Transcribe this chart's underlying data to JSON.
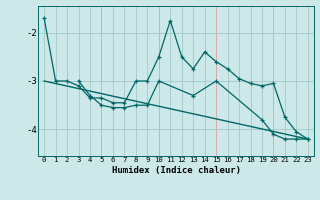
{
  "xlabel": "Humidex (Indice chaleur)",
  "background_color": "#cce8e8",
  "grid_color": "#aacccc",
  "red_grid_color": "#ddaaaa",
  "line_color": "#006666",
  "series1": {
    "x": [
      0,
      1,
      2,
      3,
      4,
      5,
      6,
      7,
      8,
      9,
      10,
      11,
      12,
      13,
      14,
      15,
      16,
      17,
      18,
      19,
      20,
      21,
      22,
      23
    ],
    "y": [
      -1.7,
      -3.0,
      -3.0,
      -3.1,
      -3.35,
      -3.35,
      -3.45,
      -3.45,
      -3.0,
      -3.0,
      -2.5,
      -1.75,
      -2.5,
      -2.75,
      -2.4,
      -2.6,
      -2.75,
      -2.95,
      -3.05,
      -3.1,
      -3.05,
      -3.75,
      -4.05,
      -4.2
    ]
  },
  "series2": {
    "x": [
      3,
      4,
      5,
      6,
      7,
      8,
      9,
      10,
      13,
      15,
      19,
      20,
      21,
      22,
      23
    ],
    "y": [
      -3.0,
      -3.3,
      -3.5,
      -3.55,
      -3.55,
      -3.5,
      -3.5,
      -3.0,
      -3.3,
      -3.0,
      -3.8,
      -4.1,
      -4.2,
      -4.2,
      -4.2
    ]
  },
  "series3": {
    "x": [
      0,
      23
    ],
    "y": [
      -3.0,
      -4.2
    ]
  },
  "ylim": [
    -4.55,
    -1.45
  ],
  "xlim": [
    -0.5,
    23.5
  ],
  "yticks": [
    -4,
    -3,
    -2
  ],
  "xtick_labels": [
    "0",
    "1",
    "2",
    "3",
    "4",
    "5",
    "6",
    "7",
    "8",
    "9",
    "10",
    "11",
    "12",
    "13",
    "14",
    "15",
    "16",
    "17",
    "18",
    "19",
    "20",
    "21",
    "22",
    "23"
  ],
  "red_vlines": [
    5,
    10,
    15,
    20
  ],
  "all_vlines": [
    0,
    1,
    2,
    3,
    4,
    5,
    6,
    7,
    8,
    9,
    10,
    11,
    12,
    13,
    14,
    15,
    16,
    17,
    18,
    19,
    20,
    21,
    22,
    23
  ],
  "all_hlines": [
    -2,
    -3,
    -4
  ]
}
